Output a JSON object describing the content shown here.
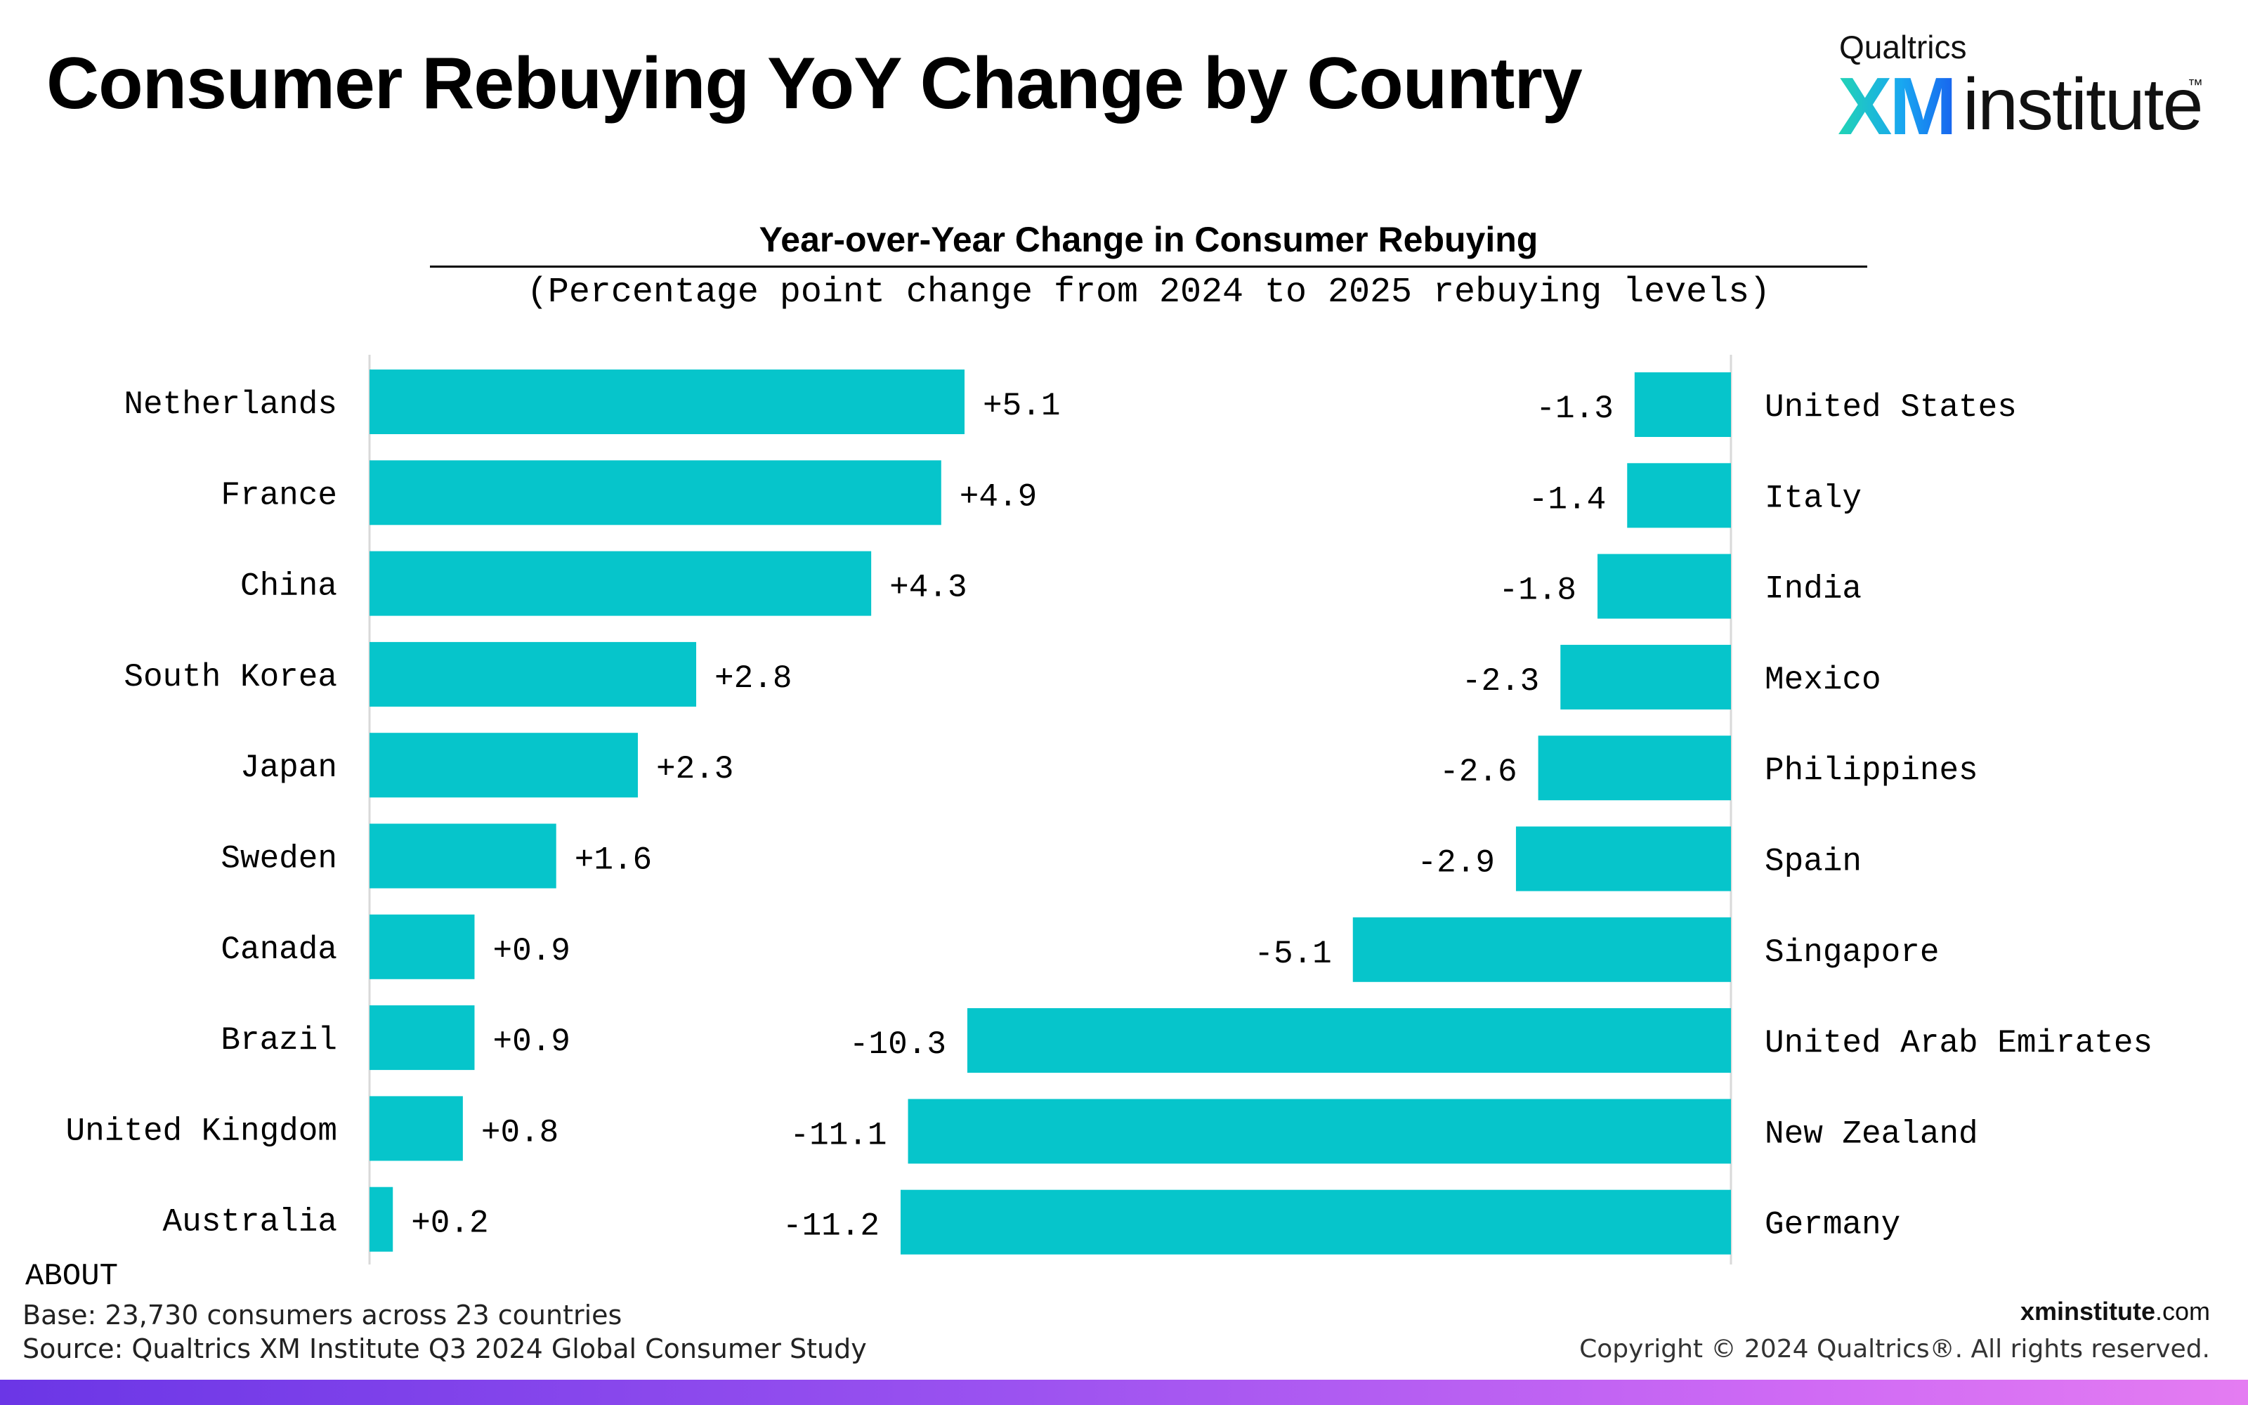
{
  "page": {
    "title": "Consumer Rebuying YoY Change by Country",
    "logo": {
      "brand": "Qualtrics",
      "xm": "XM",
      "institute": "institute",
      "tm": "™"
    },
    "footer": {
      "about_label": "ABOUT",
      "base": "Base: 23,730 consumers across 23 countries",
      "source": "Source: Qualtrics XM Institute Q3 2024 Global Consumer Study",
      "site_bold": "xminstitute",
      "site_rest": ".com",
      "copyright": "Copyright © 2024 Qualtrics®. All rights reserved."
    }
  },
  "colors": {
    "bar": "#06C5CB",
    "axis": "#d9d9d9",
    "band_start": "#6b36e6",
    "band_end": "#e47cf2"
  },
  "chart_data": [
    {
      "type": "bar",
      "orientation": "horizontal",
      "title": "Year-over-Year Change in Consumer Rebuying",
      "subtitle": "(Percentage point change from 2024 to 2025 rebuying levels)",
      "categories": [
        "Netherlands",
        "France",
        "China",
        "South Korea",
        "Japan",
        "Sweden",
        "Canada",
        "Brazil",
        "United Kingdom",
        "Australia"
      ],
      "values": [
        5.1,
        4.9,
        4.3,
        2.8,
        2.3,
        1.6,
        0.9,
        0.9,
        0.8,
        0.2
      ],
      "labels": [
        "+5.1",
        "+4.9",
        "+4.3",
        "+2.8",
        "+2.3",
        "+1.6",
        "+0.9",
        "+0.9",
        "+0.8",
        "+0.2"
      ],
      "xlim": [
        0,
        5.1
      ]
    },
    {
      "type": "bar",
      "orientation": "horizontal",
      "categories": [
        "United States",
        "Italy",
        "India",
        "Mexico",
        "Philippines",
        "Spain",
        "Singapore",
        "United Arab Emirates",
        "New Zealand",
        "Germany"
      ],
      "values": [
        -1.3,
        -1.4,
        -1.8,
        -2.3,
        -2.6,
        -2.9,
        -5.1,
        -10.3,
        -11.1,
        -11.2
      ],
      "labels": [
        "-1.3",
        "-1.4",
        "-1.8",
        "-2.3",
        "-2.6",
        "-2.9",
        "-5.1",
        "-10.3",
        "-11.1",
        "-11.2"
      ],
      "xlim": [
        -11.2,
        0
      ]
    }
  ]
}
